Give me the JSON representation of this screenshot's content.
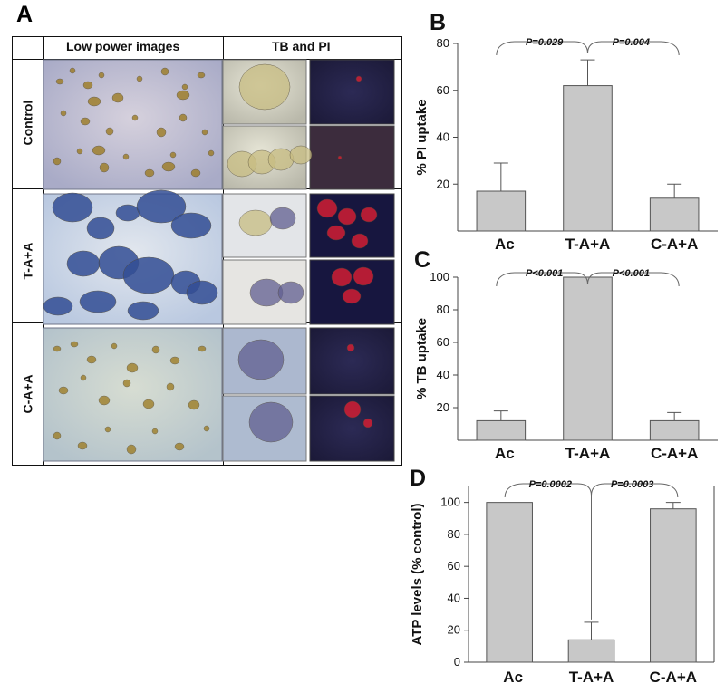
{
  "figure": {
    "panels": {
      "A": "A",
      "B": "B",
      "C": "C",
      "D": "D"
    }
  },
  "panel_a": {
    "headers": {
      "low_power": "Low power images",
      "tb_pi": "TB and PI"
    },
    "rows": [
      {
        "label": "Control"
      },
      {
        "label": "T-A+A"
      },
      {
        "label": "C-A+A"
      }
    ],
    "colors": {
      "control_bg": "#b9b7cf",
      "ta_bg": "#c7d3e7",
      "ca_bg": "#b8c7cf",
      "yellow_cells": "#9c7a1f",
      "blue_stain": "#334e95",
      "dark_field": "#242146",
      "red_pi": "#d81e33"
    }
  },
  "chart_data": [
    {
      "id": "B",
      "type": "bar",
      "title": "",
      "xlabel": "",
      "ylabel": "% PI uptake",
      "ylim": [
        0,
        80
      ],
      "yticks": [
        20,
        40,
        60,
        80
      ],
      "categories": [
        "Ac",
        "T-A+A",
        "C-A+A"
      ],
      "values": [
        17,
        62,
        14
      ],
      "errors": [
        12,
        11,
        6
      ],
      "annotations": [
        "P=0.029",
        "P=0.004"
      ],
      "grid": false,
      "bar_color": "#c8c8c8"
    },
    {
      "id": "C",
      "type": "bar",
      "title": "",
      "xlabel": "",
      "ylabel": "% TB uptake",
      "ylim": [
        0,
        100
      ],
      "yticks": [
        20,
        40,
        60,
        80,
        100
      ],
      "categories": [
        "Ac",
        "T-A+A",
        "C-A+A"
      ],
      "values": [
        12,
        100,
        12
      ],
      "errors": [
        6,
        0,
        5
      ],
      "annotations": [
        "P<0.001",
        "P<0.001"
      ],
      "grid": false,
      "bar_color": "#c8c8c8"
    },
    {
      "id": "D",
      "type": "bar",
      "title": "",
      "xlabel": "",
      "ylabel": "ATP levels (% control)",
      "ylim": [
        0,
        110
      ],
      "yticks": [
        0,
        20,
        40,
        60,
        80,
        100
      ],
      "categories": [
        "Ac",
        "T-A+A",
        "C-A+A"
      ],
      "values": [
        100,
        14,
        96
      ],
      "errors": [
        0,
        11,
        4
      ],
      "annotations": [
        "P=0.0002",
        "P=0.0003"
      ],
      "grid": false,
      "bar_color": "#c8c8c8"
    }
  ]
}
